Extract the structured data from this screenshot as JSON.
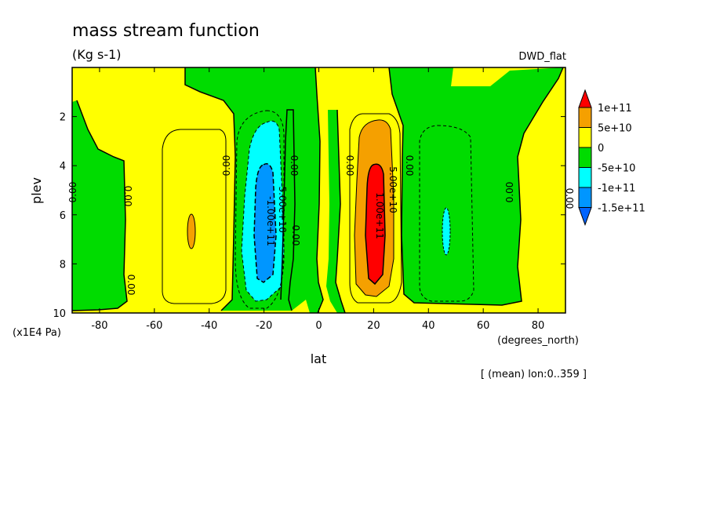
{
  "chart_data": {
    "type": "heatmap",
    "title": "mass stream function",
    "units": "(Kg s-1)",
    "dataset": "DWD_flat",
    "xlabel": "lat",
    "xunits": "(degrees_north)",
    "ylabel": "plev",
    "yunits": "(x1E4 Pa)",
    "footnote": "[ (mean) lon:0..359 ]",
    "xlim": [
      -90,
      90
    ],
    "ylim": [
      10,
      0
    ],
    "xticks": [
      -80,
      -60,
      -40,
      -20,
      0,
      20,
      40,
      60,
      80
    ],
    "yticks": [
      2,
      4,
      6,
      8,
      10
    ],
    "legend": {
      "placement": "right",
      "labels": [
        "1e+11",
        "5e+10",
        "0",
        "-5e+10",
        "-1e+11",
        "-1.5e+11"
      ],
      "colors": [
        "#ff0000",
        "#f5a000",
        "#ffff00",
        "#00dc00",
        "#00ffff",
        "#0096ff",
        "#0064ff"
      ]
    },
    "contour_labels": [
      "0.00",
      "0.00",
      "0.00",
      "0.00",
      "0.00",
      "0.00",
      "0.00",
      "0.00",
      "-5.00e+10",
      "-1.00e+11",
      "5.00e+10",
      "1.00e+11",
      "0.00",
      "0.00"
    ],
    "cells": [
      {
        "lat": -47,
        "plev": 7.0,
        "value": 55000000000.0
      },
      {
        "lat": -20,
        "plev": 6.3,
        "value": -130000000000.0
      },
      {
        "lat": 20,
        "plev": 6.3,
        "value": 120000000000.0
      },
      {
        "lat": 47,
        "plev": 6.5,
        "value": -55000000000.0
      }
    ]
  }
}
